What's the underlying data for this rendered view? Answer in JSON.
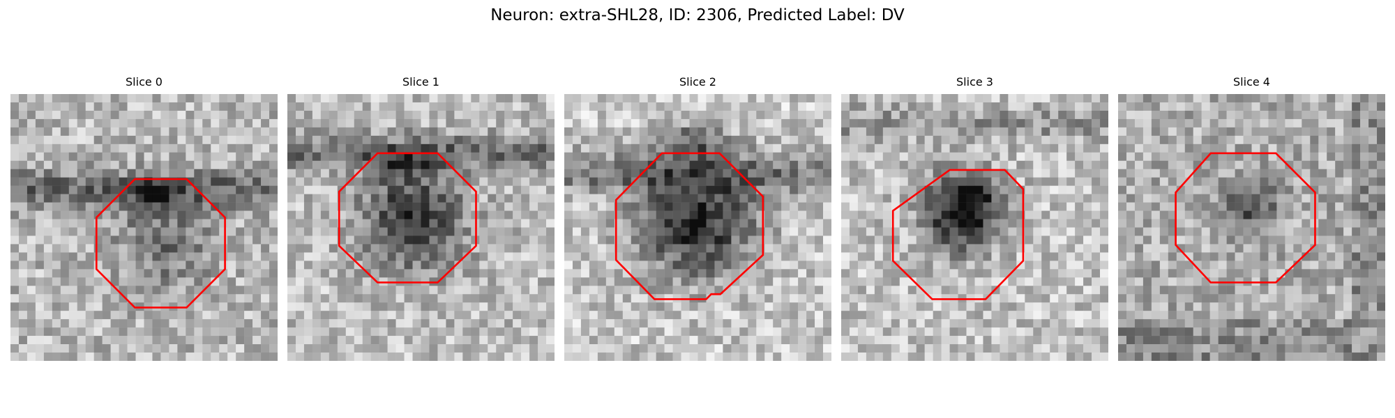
{
  "figure": {
    "title": "Neuron: extra-SHL28, ID: 2306, Predicted Label: DV"
  },
  "colors": {
    "roi_outline": "#ff0000",
    "background": "#ffffff"
  },
  "panels": [
    {
      "title": "Slice 0"
    },
    {
      "title": "Slice 1"
    },
    {
      "title": "Slice 2"
    },
    {
      "title": "Slice 3"
    },
    {
      "title": "Slice 4"
    }
  ]
}
